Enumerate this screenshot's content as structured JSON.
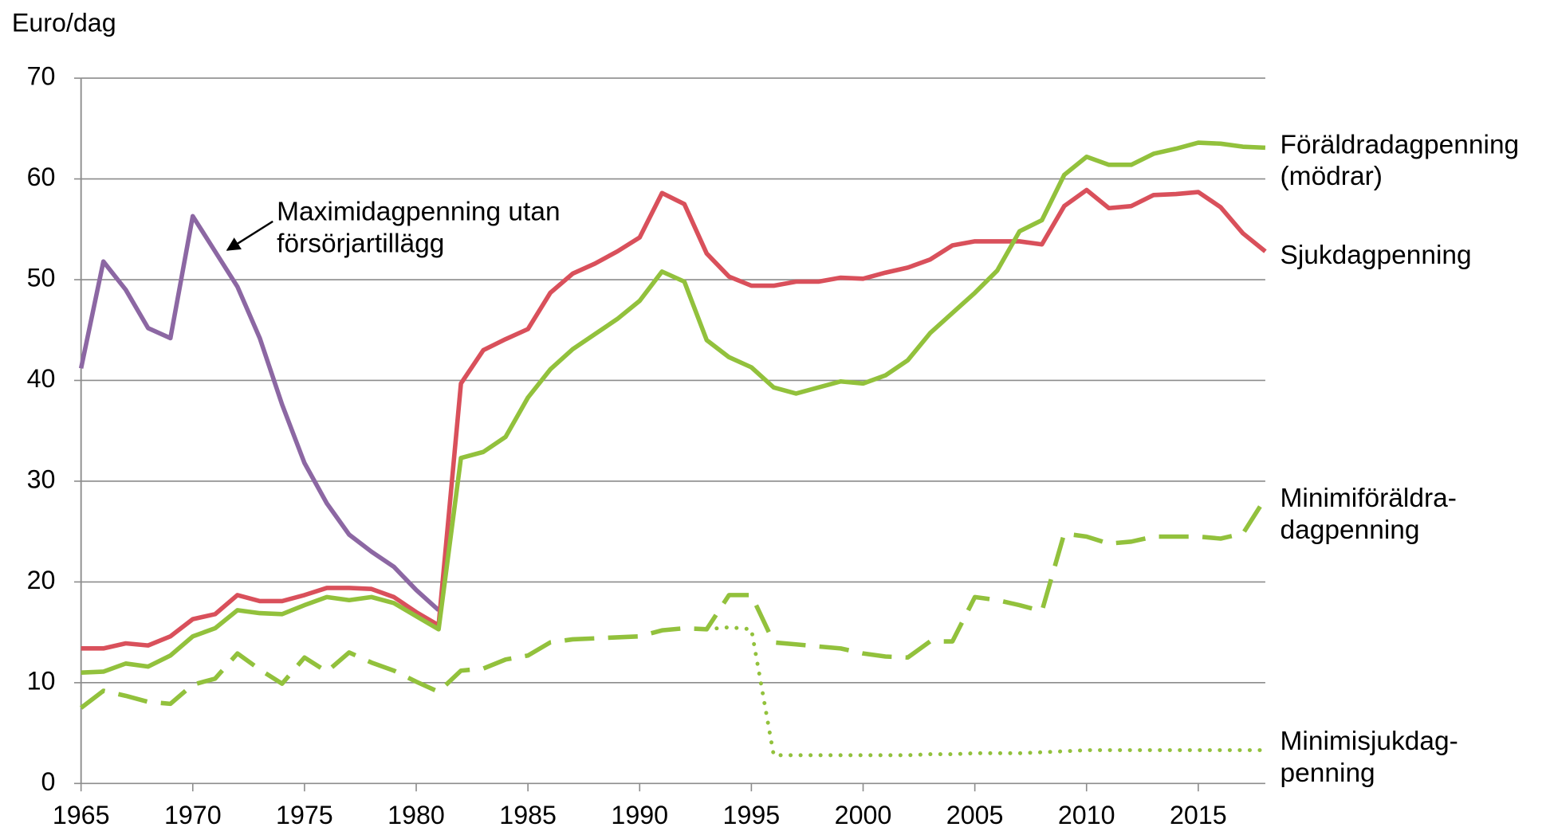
{
  "chart_data": {
    "type": "line",
    "y_label": "Euro/dag",
    "x": [
      1965,
      1966,
      1967,
      1968,
      1969,
      1970,
      1971,
      1972,
      1973,
      1974,
      1975,
      1976,
      1977,
      1978,
      1979,
      1980,
      1981,
      1982,
      1983,
      1984,
      1985,
      1986,
      1987,
      1988,
      1989,
      1990,
      1991,
      1992,
      1993,
      1994,
      1995,
      1996,
      1997,
      1998,
      1999,
      2000,
      2001,
      2002,
      2003,
      2004,
      2005,
      2006,
      2007,
      2008,
      2009,
      2010,
      2011,
      2012,
      2013,
      2014,
      2015,
      2016,
      2017,
      2018
    ],
    "xlim": [
      1965,
      2018
    ],
    "xticks": [
      1965,
      1970,
      1975,
      1980,
      1985,
      1990,
      1995,
      2000,
      2005,
      2010,
      2015
    ],
    "ylim": [
      0,
      70
    ],
    "yticks": [
      0,
      10,
      20,
      30,
      40,
      50,
      60,
      70
    ],
    "grid": true,
    "series": [
      {
        "name": "Maximidagpenning utan försörjartillägg",
        "color": "#8c67a3",
        "style": "solid",
        "values": [
          41.2,
          51.8,
          49,
          45.2,
          44.2,
          56.3,
          52.8,
          49.3,
          44.2,
          37.6,
          31.8,
          27.8,
          24.7,
          23,
          21.5,
          19.2,
          17.2,
          null,
          null,
          null,
          null,
          null,
          null,
          null,
          null,
          null,
          null,
          null,
          null,
          null,
          null,
          null,
          null,
          null,
          null,
          null,
          null,
          null,
          null,
          null,
          null,
          null,
          null,
          null,
          null,
          null,
          null,
          null,
          null,
          null,
          null,
          null,
          null,
          null
        ]
      },
      {
        "name": "Sjukdagpenning",
        "color": "#d9505b",
        "style": "solid",
        "values": [
          13.4,
          13.4,
          13.9,
          13.7,
          14.6,
          16.3,
          16.8,
          18.7,
          18.1,
          18.1,
          18.7,
          19.4,
          19.4,
          19.3,
          18.5,
          17,
          15.7,
          39.7,
          43,
          44.1,
          45.1,
          48.7,
          50.6,
          51.6,
          52.8,
          54.2,
          58.6,
          57.5,
          52.6,
          50.3,
          49.4,
          49.4,
          49.8,
          49.8,
          50.2,
          50.1,
          50.7,
          51.2,
          52,
          53.4,
          53.8,
          53.8,
          53.8,
          53.5,
          57.3,
          58.9,
          57.1,
          57.3,
          58.4,
          58.5,
          58.7,
          57.2,
          54.6,
          52.8
        ]
      },
      {
        "name": "Föräldradagpenning (mödrar)",
        "color": "#92c13c",
        "style": "solid",
        "values": [
          11,
          11.1,
          11.9,
          11.6,
          12.7,
          14.6,
          15.4,
          17.2,
          16.9,
          16.8,
          17.7,
          18.5,
          18.2,
          18.5,
          17.9,
          16.6,
          15.3,
          32.3,
          32.9,
          34.4,
          38.3,
          41.1,
          43.1,
          44.6,
          46.1,
          47.9,
          50.8,
          49.8,
          44,
          42.3,
          41.3,
          39.3,
          38.7,
          39.3,
          39.9,
          39.7,
          40.5,
          42,
          44.7,
          46.7,
          48.7,
          50.9,
          54.8,
          55.9,
          60.4,
          62.2,
          61.4,
          61.4,
          62.5,
          63,
          63.6,
          63.5,
          63.2,
          63.1
        ]
      },
      {
        "name": "Minimiföräldra-dagpenning",
        "color": "#92c13c",
        "style": "dashed",
        "values": [
          7.5,
          9.2,
          8.7,
          8.1,
          7.9,
          9.8,
          10.4,
          12.9,
          11.3,
          9.9,
          12.5,
          11.1,
          13,
          12,
          11.2,
          10.1,
          9.1,
          11.2,
          11.4,
          12.3,
          12.7,
          14,
          14.3,
          14.4,
          14.5,
          14.6,
          15.2,
          15.4,
          15.3,
          18.7,
          18.7,
          14,
          13.8,
          13.6,
          13.4,
          12.9,
          12.6,
          12.5,
          14.1,
          14.1,
          18.5,
          18.2,
          17.7,
          17.1,
          24.8,
          24.5,
          23.8,
          24,
          24.5,
          24.5,
          24.5,
          24.3,
          24.8,
          28.3
        ]
      },
      {
        "name": "Minimisjukdag-penning",
        "color": "#92c13c",
        "style": "dotted",
        "values": [
          null,
          null,
          null,
          null,
          null,
          null,
          null,
          null,
          null,
          null,
          null,
          null,
          null,
          null,
          null,
          null,
          null,
          null,
          null,
          null,
          null,
          null,
          null,
          null,
          null,
          null,
          null,
          null,
          15.3,
          15.5,
          15.3,
          2.8,
          2.8,
          2.8,
          2.8,
          2.8,
          2.8,
          2.8,
          2.9,
          2.9,
          3,
          3,
          3,
          3.1,
          3.2,
          3.3,
          3.3,
          3.3,
          3.3,
          3.3,
          3.3,
          3.3,
          3.3,
          3.3
        ]
      }
    ]
  }
}
